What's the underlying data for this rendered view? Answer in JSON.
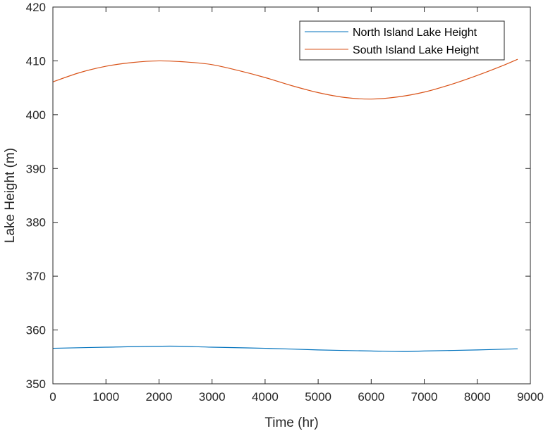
{
  "chart_data": {
    "type": "line",
    "title": "",
    "xlabel": "Time (hr)",
    "ylabel": "Lake Height (m)",
    "xlim": [
      0,
      9000
    ],
    "ylim": [
      350,
      420
    ],
    "xticks": [
      0,
      1000,
      2000,
      3000,
      4000,
      5000,
      6000,
      7000,
      8000,
      9000
    ],
    "yticks": [
      350,
      360,
      370,
      380,
      390,
      400,
      410,
      420
    ],
    "xtick_labels": [
      "0",
      "1000",
      "2000",
      "3000",
      "4000",
      "5000",
      "6000",
      "7000",
      "8000",
      "9000"
    ],
    "ytick_labels": [
      "350",
      "360",
      "370",
      "380",
      "390",
      "400",
      "410",
      "420"
    ],
    "grid": false,
    "legend_position": "top-right",
    "series": [
      {
        "name": "North Island Lake Height",
        "color": "#0072BD",
        "x": [
          0,
          1000,
          2200,
          3000,
          4000,
          5000,
          6000,
          6600,
          7000,
          8000,
          8760
        ],
        "y": [
          356.6,
          356.8,
          357.0,
          356.8,
          356.6,
          356.3,
          356.1,
          356.0,
          356.1,
          356.3,
          356.5
        ]
      },
      {
        "name": "South Island Lake Height",
        "color": "#D95319",
        "x": [
          0,
          500,
          1000,
          1500,
          2000,
          2500,
          3000,
          3500,
          4000,
          4500,
          5000,
          5500,
          6000,
          6500,
          7000,
          7500,
          8000,
          8500,
          8760
        ],
        "y": [
          406.1,
          407.8,
          409.0,
          409.7,
          410.0,
          409.8,
          409.3,
          408.2,
          406.9,
          405.4,
          404.1,
          403.2,
          402.9,
          403.3,
          404.2,
          405.6,
          407.3,
          409.2,
          410.3
        ]
      }
    ]
  }
}
